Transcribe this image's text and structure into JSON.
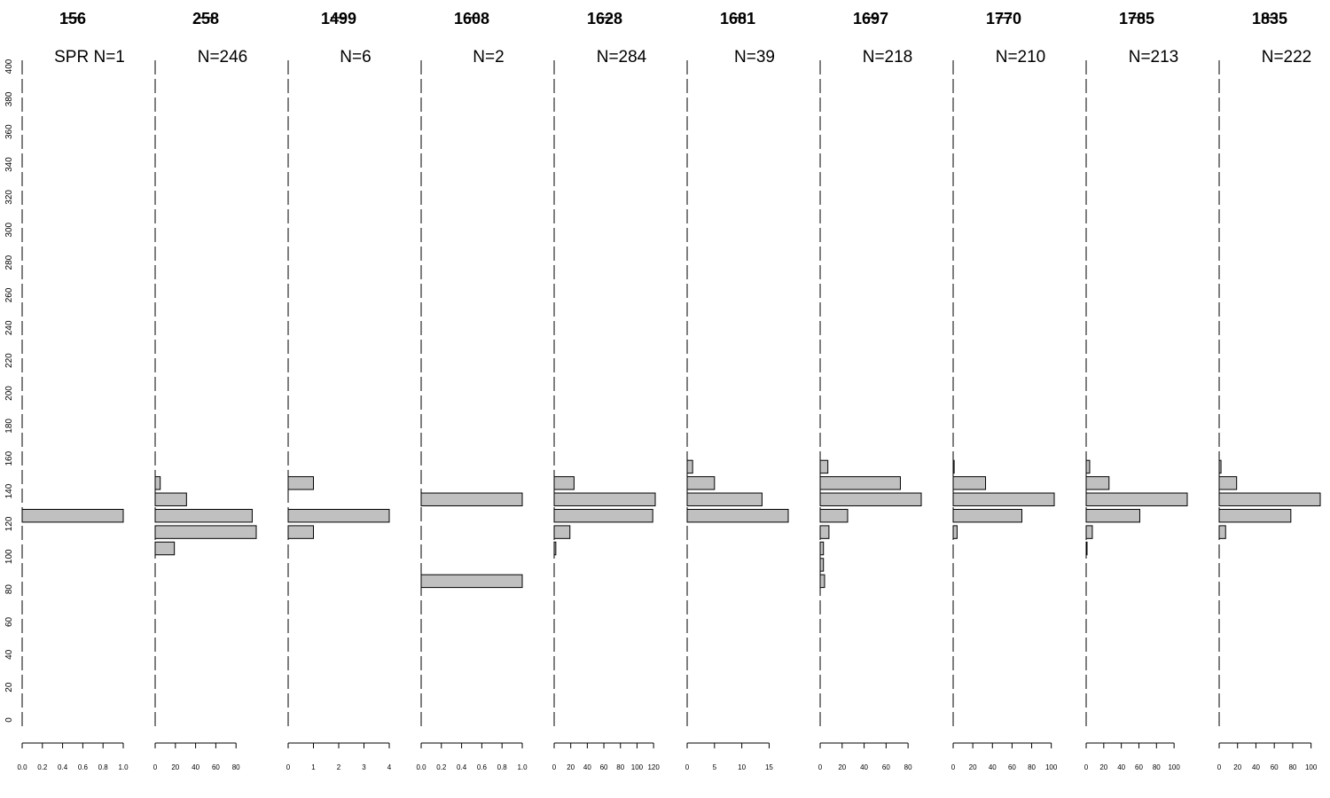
{
  "chart_data": {
    "type": "bar",
    "orientation": "horizontal",
    "shared_y_axis": {
      "range": [
        0,
        400
      ],
      "ticks": [
        0,
        20,
        40,
        60,
        80,
        100,
        120,
        140,
        160,
        180,
        200,
        220,
        240,
        260,
        280,
        300,
        320,
        340,
        360,
        380,
        400
      ]
    },
    "bin_width": 10,
    "bar_color": "#c0c0c0",
    "bar_edge_color": "#000000",
    "panels": [
      {
        "year": "156",
        "label": "SPR N=1",
        "x_range": [
          0,
          1.0
        ],
        "x_ticks": [
          "0.0",
          "0.2",
          "0.4",
          "0.6",
          "0.8",
          "1.0"
        ],
        "bins": [
          {
            "y": 120,
            "value": 1
          }
        ]
      },
      {
        "year": "258",
        "label": "N=246",
        "x_range": [
          0,
          100
        ],
        "x_ticks": [
          "0",
          "20",
          "40",
          "60",
          "80"
        ],
        "bins": [
          {
            "y": 100,
            "value": 19
          },
          {
            "y": 110,
            "value": 100
          },
          {
            "y": 120,
            "value": 96
          },
          {
            "y": 130,
            "value": 31
          },
          {
            "y": 140,
            "value": 5
          }
        ]
      },
      {
        "year": "1499",
        "label": "N=6",
        "x_range": [
          0,
          4
        ],
        "x_ticks": [
          "0",
          "1",
          "2",
          "3",
          "4"
        ],
        "bins": [
          {
            "y": 110,
            "value": 1
          },
          {
            "y": 120,
            "value": 4
          },
          {
            "y": 140,
            "value": 1
          }
        ]
      },
      {
        "year": "1608",
        "label": "N=2",
        "x_range": [
          0,
          1.0
        ],
        "x_ticks": [
          "0.0",
          "0.2",
          "0.4",
          "0.6",
          "0.8",
          "1.0"
        ],
        "bins": [
          {
            "y": 80,
            "value": 1
          },
          {
            "y": 130,
            "value": 1
          }
        ]
      },
      {
        "year": "1628",
        "label": "N=284",
        "x_range": [
          0,
          122
        ],
        "x_ticks": [
          "0",
          "20",
          "40",
          "60",
          "80",
          "100",
          "120"
        ],
        "bins": [
          {
            "y": 100,
            "value": 2
          },
          {
            "y": 110,
            "value": 19
          },
          {
            "y": 120,
            "value": 119
          },
          {
            "y": 130,
            "value": 122
          },
          {
            "y": 140,
            "value": 24
          }
        ]
      },
      {
        "year": "1681",
        "label": "N=39",
        "x_range": [
          0,
          18.5
        ],
        "x_ticks": [
          "0",
          "5",
          "10",
          "15"
        ],
        "bins": [
          {
            "y": 120,
            "value": 18.5
          },
          {
            "y": 130,
            "value": 13.7
          },
          {
            "y": 140,
            "value": 5
          },
          {
            "y": 150,
            "value": 1
          }
        ]
      },
      {
        "year": "1697",
        "label": "N=218",
        "x_range": [
          0,
          92
        ],
        "x_ticks": [
          "0",
          "20",
          "40",
          "60",
          "80"
        ],
        "bins": [
          {
            "y": 80,
            "value": 4
          },
          {
            "y": 90,
            "value": 3
          },
          {
            "y": 100,
            "value": 3
          },
          {
            "y": 110,
            "value": 8
          },
          {
            "y": 120,
            "value": 25
          },
          {
            "y": 130,
            "value": 92
          },
          {
            "y": 140,
            "value": 73
          },
          {
            "y": 150,
            "value": 7
          }
        ]
      },
      {
        "year": "1770",
        "label": "N=210",
        "x_range": [
          0,
          103
        ],
        "x_ticks": [
          "0",
          "20",
          "40",
          "60",
          "80",
          "100"
        ],
        "bins": [
          {
            "y": 110,
            "value": 4
          },
          {
            "y": 120,
            "value": 70
          },
          {
            "y": 130,
            "value": 103
          },
          {
            "y": 140,
            "value": 33
          },
          {
            "y": 150,
            "value": 1
          }
        ]
      },
      {
        "year": "1785",
        "label": "N=213",
        "x_range": [
          0,
          115
        ],
        "x_ticks": [
          "0",
          "20",
          "40",
          "60",
          "80",
          "100"
        ],
        "bins": [
          {
            "y": 100,
            "value": 1
          },
          {
            "y": 110,
            "value": 7
          },
          {
            "y": 120,
            "value": 61
          },
          {
            "y": 130,
            "value": 115
          },
          {
            "y": 140,
            "value": 26
          },
          {
            "y": 150,
            "value": 4
          }
        ]
      },
      {
        "year": "1835",
        "label": "N=222",
        "x_range": [
          0,
          110
        ],
        "x_ticks": [
          "0",
          "20",
          "40",
          "60",
          "80",
          "100"
        ],
        "bins": [
          {
            "y": 110,
            "value": 7
          },
          {
            "y": 120,
            "value": 78
          },
          {
            "y": 130,
            "value": 110
          },
          {
            "y": 140,
            "value": 19
          },
          {
            "y": 150,
            "value": 2
          }
        ]
      }
    ]
  }
}
